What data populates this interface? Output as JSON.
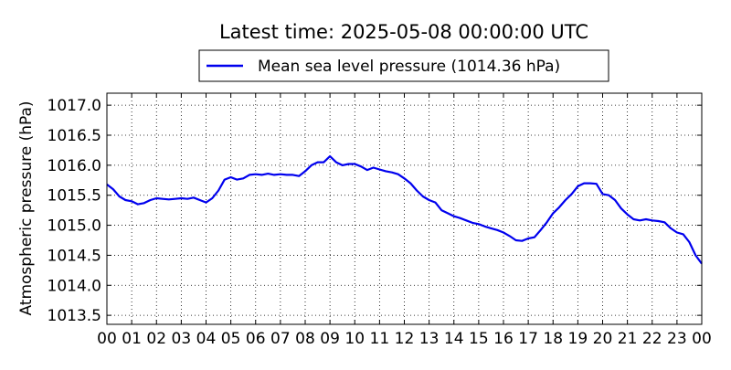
{
  "chart_data": {
    "type": "line",
    "title": "Latest time: 2025-05-08 00:00:00 UTC",
    "xlabel": "",
    "ylabel": "Atmospheric pressure (hPa)",
    "xlim": [
      0,
      24
    ],
    "ylim": [
      1013.35,
      1017.2
    ],
    "grid": true,
    "legend_position": "top-center",
    "x_tick_labels": [
      "00",
      "01",
      "02",
      "03",
      "04",
      "05",
      "06",
      "07",
      "08",
      "09",
      "10",
      "11",
      "12",
      "13",
      "14",
      "15",
      "16",
      "17",
      "18",
      "19",
      "20",
      "21",
      "22",
      "23",
      "00"
    ],
    "y_ticks": [
      1013.5,
      1014.0,
      1014.5,
      1015.0,
      1015.5,
      1016.0,
      1016.5,
      1017.0
    ],
    "y_tick_labels": [
      "1013.5",
      "1014.0",
      "1014.5",
      "1015.0",
      "1015.5",
      "1016.0",
      "1016.5",
      "1017.0"
    ],
    "series": [
      {
        "name": "Mean sea level pressure (1014.36 hPa)",
        "color": "#0000ee",
        "x": [
          0,
          0.25,
          0.5,
          0.75,
          1.0,
          1.25,
          1.5,
          1.75,
          2.0,
          2.25,
          2.5,
          2.75,
          3.0,
          3.25,
          3.5,
          3.75,
          4.0,
          4.25,
          4.5,
          4.75,
          5.0,
          5.25,
          5.5,
          5.75,
          6.0,
          6.25,
          6.5,
          6.75,
          7.0,
          7.25,
          7.5,
          7.75,
          8.0,
          8.25,
          8.5,
          8.75,
          9.0,
          9.25,
          9.5,
          9.75,
          10.0,
          10.25,
          10.5,
          10.75,
          11.0,
          11.25,
          11.5,
          11.75,
          12.0,
          12.25,
          12.5,
          12.75,
          13.0,
          13.25,
          13.5,
          13.75,
          14.0,
          14.25,
          14.5,
          14.75,
          15.0,
          15.25,
          15.5,
          15.75,
          16.0,
          16.25,
          16.5,
          16.75,
          17.0,
          17.25,
          17.5,
          17.75,
          18.0,
          18.25,
          18.5,
          18.75,
          19.0,
          19.25,
          19.5,
          19.75,
          20.0,
          20.25,
          20.5,
          20.75,
          21.0,
          21.25,
          21.5,
          21.75,
          22.0,
          22.25,
          22.5,
          22.75,
          23.0,
          23.25,
          23.5,
          23.75,
          24.0
        ],
        "values": [
          1015.68,
          1015.6,
          1015.48,
          1015.42,
          1015.4,
          1015.35,
          1015.37,
          1015.42,
          1015.45,
          1015.44,
          1015.43,
          1015.44,
          1015.45,
          1015.44,
          1015.46,
          1015.42,
          1015.38,
          1015.45,
          1015.58,
          1015.76,
          1015.8,
          1015.76,
          1015.78,
          1015.84,
          1015.85,
          1015.84,
          1015.86,
          1015.84,
          1015.85,
          1015.84,
          1015.84,
          1015.82,
          1015.9,
          1016.0,
          1016.05,
          1016.05,
          1016.15,
          1016.05,
          1016.0,
          1016.02,
          1016.02,
          1015.98,
          1015.92,
          1015.96,
          1015.93,
          1015.9,
          1015.88,
          1015.85,
          1015.78,
          1015.7,
          1015.58,
          1015.48,
          1015.42,
          1015.38,
          1015.25,
          1015.2,
          1015.15,
          1015.12,
          1015.08,
          1015.04,
          1015.02,
          1014.98,
          1014.95,
          1014.92,
          1014.88,
          1014.82,
          1014.75,
          1014.74,
          1014.78,
          1014.8,
          1014.92,
          1015.05,
          1015.2,
          1015.3,
          1015.42,
          1015.52,
          1015.65,
          1015.7,
          1015.7,
          1015.69,
          1015.52,
          1015.5,
          1015.42,
          1015.28,
          1015.18,
          1015.1,
          1015.08,
          1015.1,
          1015.08,
          1015.07,
          1015.05,
          1014.95,
          1014.88,
          1014.85,
          1014.72,
          1014.5,
          1014.36
        ]
      }
    ]
  }
}
